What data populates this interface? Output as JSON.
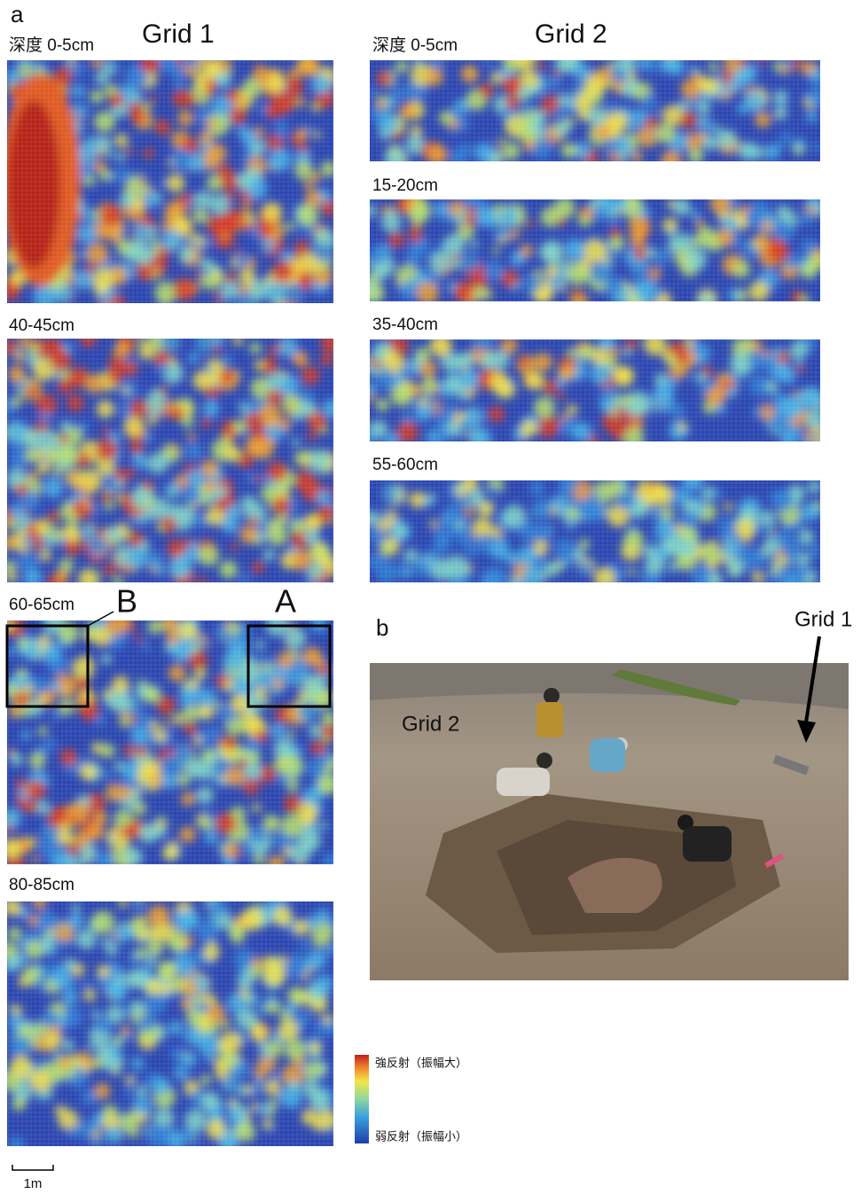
{
  "panel_a": {
    "label": "a",
    "grid1": {
      "title": "Grid 1",
      "depths": [
        "深度 0-5cm",
        "40-45cm",
        "60-65cm",
        "80-85cm"
      ],
      "box_b": "B",
      "box_a": "A"
    },
    "grid2": {
      "title": "Grid 2",
      "depths": [
        "深度 0-5cm",
        "15-20cm",
        "35-40cm",
        "55-60cm"
      ]
    }
  },
  "legend": {
    "high": "強反射（振幅大）",
    "low": "弱反射（振幅小）"
  },
  "scale_bar": "1m",
  "panel_b": {
    "label": "b",
    "grid1_label": "Grid 1",
    "grid2_label": "Grid 2"
  }
}
